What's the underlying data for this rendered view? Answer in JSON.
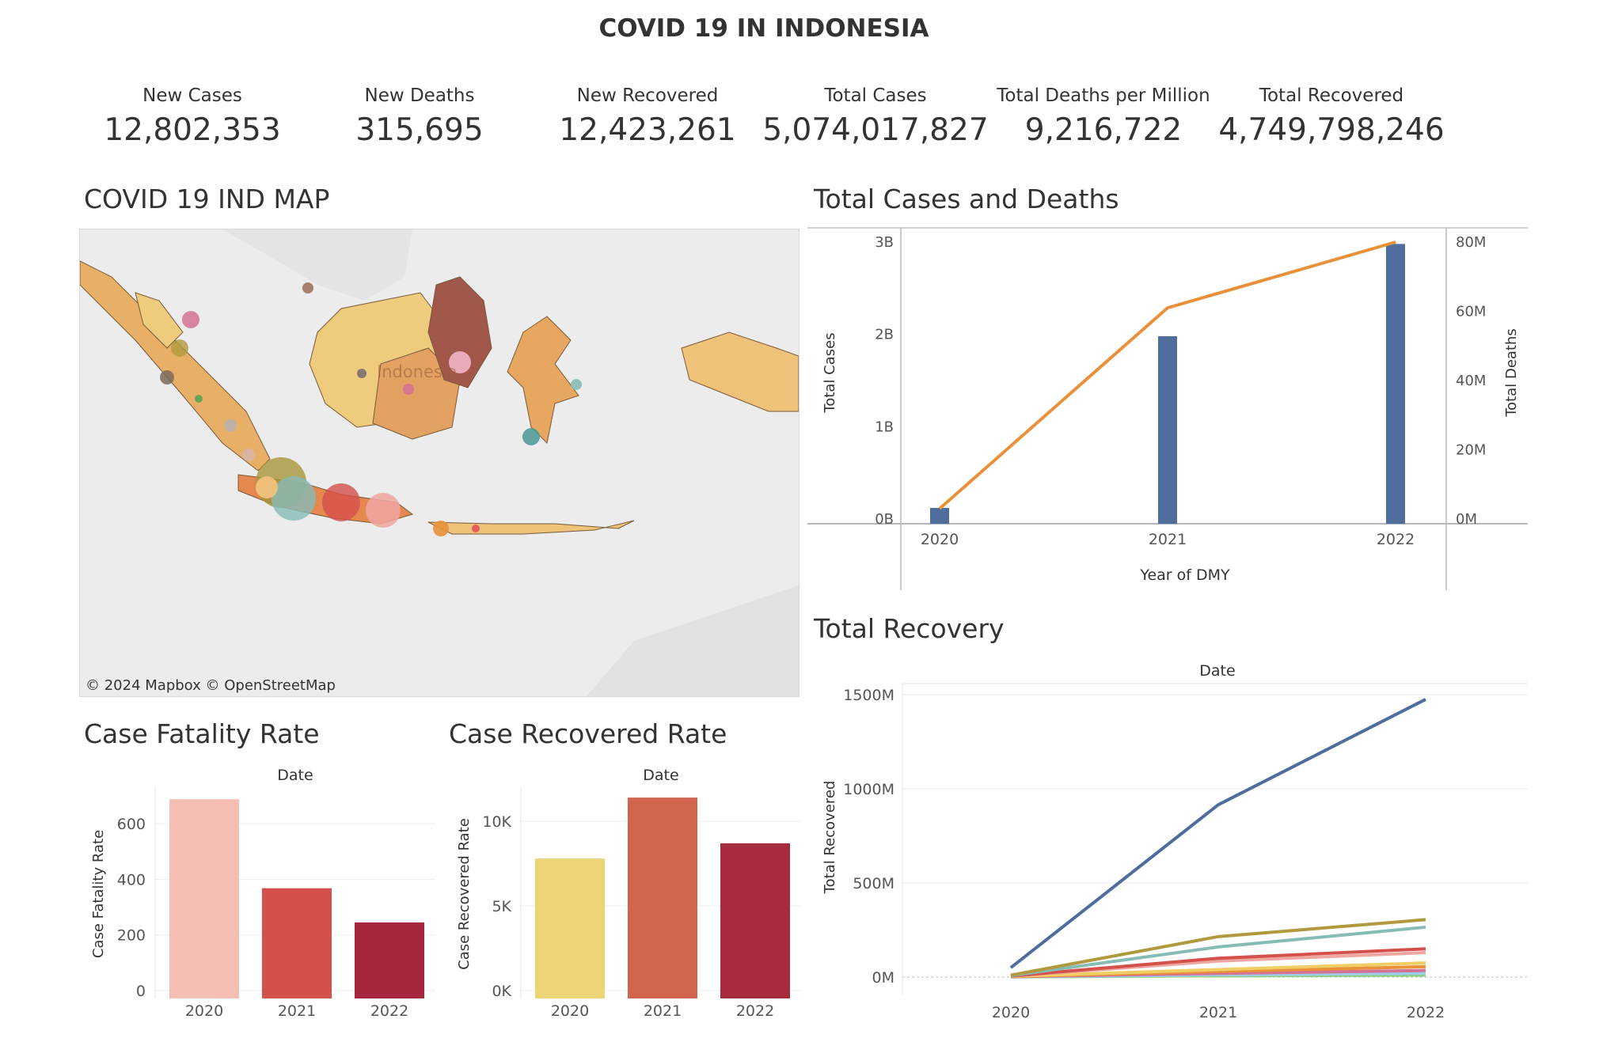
{
  "title": "COVID 19 IN INDONESIA",
  "kpis": [
    {
      "label": "New Cases",
      "value": "12,802,353"
    },
    {
      "label": "New Deaths",
      "value": "315,695"
    },
    {
      "label": "New Recovered",
      "value": "12,423,261"
    },
    {
      "label": "Total Cases",
      "value": "5,074,017,827"
    },
    {
      "label": "Total Deaths per Million",
      "value": "9,216,722"
    },
    {
      "label": "Total Recovered",
      "value": "4,749,798,246"
    }
  ],
  "map": {
    "title": "COVID 19 IND MAP",
    "country_label": "Indonesia",
    "credit": "© 2024 Mapbox  © OpenStreetMap"
  },
  "colors": {
    "blue": "#4e6d9c",
    "orange": "#e8913a",
    "land": "#e8a760",
    "water": "#ffffff"
  },
  "chart_data": [
    {
      "type": "bar",
      "title": "Total Cases and Deaths",
      "categories": [
        "2020",
        "2021",
        "2022"
      ],
      "xlabel": "Year of DMY",
      "ylabel": "Total Cases",
      "ylabel2": "Total Deaths",
      "yticks": [
        "0B",
        "1B",
        "2B",
        "3B"
      ],
      "yticks2": [
        "0M",
        "20M",
        "40M",
        "60M",
        "80M"
      ],
      "ylim": [
        0,
        3000000000
      ],
      "ylim2": [
        0,
        80000000
      ],
      "series": [
        {
          "name": "Total Cases",
          "type": "bar",
          "values": [
            120000000,
            1980000000,
            2980000000
          ],
          "axis": "left"
        },
        {
          "name": "Total Deaths",
          "type": "line",
          "values": [
            3000000,
            61000000,
            80000000
          ],
          "axis": "right"
        }
      ]
    },
    {
      "type": "line",
      "title": "Total Recovery",
      "header": "Date",
      "categories": [
        "2020",
        "2021",
        "2022"
      ],
      "ylabel": "Total Recovered",
      "yticks": [
        "0M",
        "500M",
        "1000M",
        "1500M"
      ],
      "ylim": [
        0,
        1500000000
      ],
      "series": [
        {
          "values": [
            50000000,
            915000000,
            1475000000
          ],
          "color": "#4e6d9c"
        },
        {
          "values": [
            10000000,
            215000000,
            305000000
          ],
          "color": "#b09a3e"
        },
        {
          "values": [
            8000000,
            160000000,
            265000000
          ],
          "color": "#86bcb6"
        },
        {
          "values": [
            6000000,
            100000000,
            150000000
          ],
          "color": "#d4504a"
        },
        {
          "values": [
            5000000,
            85000000,
            130000000
          ],
          "color": "#f0a6a0"
        },
        {
          "values": [
            4000000,
            40000000,
            75000000
          ],
          "color": "#f1ce63"
        },
        {
          "values": [
            3000000,
            30000000,
            55000000
          ],
          "color": "#e8913a"
        },
        {
          "values": [
            2000000,
            20000000,
            35000000
          ],
          "color": "#d37295"
        },
        {
          "values": [
            1500000,
            12000000,
            20000000
          ],
          "color": "#a0cbe8"
        },
        {
          "values": [
            1000000,
            7000000,
            10000000
          ],
          "color": "#8cd17d"
        }
      ]
    },
    {
      "type": "bar",
      "title": "Case Fatality Rate",
      "header": "Date",
      "categories": [
        "2020",
        "2021",
        "2022"
      ],
      "ylabel": "Case Fatality Rate",
      "yticks": [
        "0",
        "200",
        "400",
        "600"
      ],
      "ylim": [
        0,
        700
      ],
      "values": [
        688,
        368,
        245
      ],
      "colors": [
        "#f4bfb2",
        "#d4504a",
        "#a6263d"
      ]
    },
    {
      "type": "bar",
      "title": "Case Recovered Rate",
      "header": "Date",
      "categories": [
        "2020",
        "2021",
        "2022"
      ],
      "ylabel": "Case Recovered Rate",
      "yticks": [
        "0K",
        "5K",
        "10K"
      ],
      "ylim": [
        0,
        11500
      ],
      "values": [
        7800,
        11400,
        8700
      ],
      "colors": [
        "#ecd477",
        "#d1644c",
        "#a62b3f"
      ]
    }
  ]
}
